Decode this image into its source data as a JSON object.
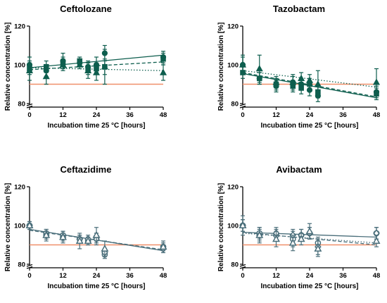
{
  "figure": {
    "background": "#ffffff"
  },
  "colors": {
    "teal_dark": "#0e5e4e",
    "slate": "#4a6e7a",
    "reference_line": "#f0906a",
    "axis": "#000000"
  },
  "chart_data": [
    {
      "type": "scatter",
      "title": "Ceftolozane",
      "xlabel": "Incubation time 25 °C [hours]",
      "ylabel": "Relative concentration [%]",
      "xlim": [
        0,
        48
      ],
      "xticks": [
        0,
        12,
        24,
        36,
        48
      ],
      "ylim": [
        80,
        120
      ],
      "yticks": [
        80,
        100,
        120
      ],
      "y_axis_break": true,
      "reference_line": 90,
      "color": "#0e5e4e",
      "series": [
        {
          "marker": "circle",
          "filled": true,
          "line": "solid",
          "x": [
            0,
            6,
            12,
            18,
            21,
            24,
            27,
            48
          ],
          "y": [
            100,
            97,
            102,
            101,
            99,
            100,
            106,
            104
          ],
          "err": [
            4,
            3,
            4,
            2,
            3,
            4,
            4,
            3
          ],
          "fit": [
            [
              0,
              98.5
            ],
            [
              48,
              105
            ]
          ]
        },
        {
          "marker": "square",
          "filled": true,
          "line": "dashed",
          "x": [
            0,
            6,
            12,
            18,
            21,
            24,
            27,
            48
          ],
          "y": [
            98,
            99,
            101,
            102,
            98,
            98,
            99,
            103
          ],
          "err": [
            3,
            3,
            3,
            2,
            3,
            3,
            4,
            3
          ],
          "fit": [
            [
              0,
              97.5
            ],
            [
              48,
              101.5
            ]
          ]
        },
        {
          "marker": "triangle",
          "filled": true,
          "line": "dotted",
          "x": [
            0,
            6,
            12,
            18,
            21,
            24,
            27,
            48
          ],
          "y": [
            97,
            94,
            100,
            100,
            97,
            96,
            99,
            96
          ],
          "err": [
            5,
            4,
            3,
            2,
            4,
            4,
            9,
            4
          ],
          "fit": [
            [
              0,
              98.5
            ],
            [
              48,
              97
            ]
          ]
        }
      ]
    },
    {
      "type": "scatter",
      "title": "Tazobactam",
      "xlabel": "Incubation time 25 °C [hours]",
      "ylabel": "Relative concentration [%]",
      "xlim": [
        0,
        48
      ],
      "xticks": [
        0,
        12,
        24,
        36,
        48
      ],
      "ylim": [
        80,
        120
      ],
      "yticks": [
        80,
        100,
        120
      ],
      "y_axis_break": true,
      "reference_line": 90,
      "color": "#0e5e4e",
      "series": [
        {
          "marker": "circle",
          "filled": true,
          "line": "solid",
          "x": [
            0,
            6,
            12,
            18,
            21,
            24,
            27,
            48
          ],
          "y": [
            100,
            93,
            89,
            91,
            90,
            87,
            84,
            86
          ],
          "err": [
            4,
            3,
            3,
            3,
            3,
            3,
            3,
            3
          ],
          "fit": [
            [
              0,
              95.5
            ],
            [
              48,
              83
            ]
          ]
        },
        {
          "marker": "square",
          "filled": true,
          "line": "dashed",
          "x": [
            0,
            6,
            12,
            18,
            21,
            24,
            27,
            48
          ],
          "y": [
            96,
            93,
            90,
            89,
            88,
            90,
            86,
            85
          ],
          "err": [
            3,
            3,
            3,
            3,
            3,
            3,
            3,
            3
          ],
          "fit": [
            [
              0,
              96
            ],
            [
              48,
              83.5
            ]
          ]
        },
        {
          "marker": "triangle",
          "filled": true,
          "line": "dotted",
          "x": [
            0,
            6,
            12,
            18,
            21,
            24,
            27,
            48
          ],
          "y": [
            100,
            98,
            91,
            91,
            93,
            92,
            90,
            91
          ],
          "err": [
            5,
            7,
            3,
            4,
            3,
            3,
            7,
            7
          ],
          "fit": [
            [
              0,
              97
            ],
            [
              48,
              88.5
            ]
          ]
        }
      ]
    },
    {
      "type": "scatter",
      "title": "Ceftazidime",
      "xlabel": "Incubation time 25 °C [hours]",
      "ylabel": "Relative concentration [%]",
      "xlim": [
        0,
        48
      ],
      "xticks": [
        0,
        12,
        24,
        36,
        48
      ],
      "ylim": [
        80,
        120
      ],
      "yticks": [
        80,
        100,
        120
      ],
      "y_axis_break": true,
      "reference_line": 90,
      "color": "#4a6e7a",
      "series": [
        {
          "marker": "circle",
          "filled": false,
          "line": "solid",
          "x": [
            0,
            6,
            12,
            18,
            21,
            24,
            27,
            48
          ],
          "y": [
            100,
            96,
            95,
            93,
            92,
            94,
            85,
            89
          ],
          "err": [
            2,
            2,
            2,
            2,
            2,
            2,
            2,
            2
          ],
          "fit": [
            [
              0,
              98
            ],
            [
              48,
              87
            ]
          ]
        },
        {
          "marker": "diamond",
          "filled": false,
          "line": "dashed",
          "x": [
            0,
            6,
            12,
            18,
            21,
            24,
            27,
            48
          ],
          "y": [
            100,
            95,
            94,
            93,
            93,
            93,
            86,
            88
          ],
          "err": [
            2,
            2,
            2,
            2,
            2,
            3,
            2,
            2
          ],
          "fit": [
            [
              0,
              97.5
            ],
            [
              48,
              87.5
            ]
          ]
        },
        {
          "marker": "triangle",
          "filled": false,
          "line": "dotted",
          "x": [
            0,
            6,
            12,
            18,
            21,
            24,
            27,
            48
          ],
          "y": [
            100,
            95,
            94,
            92,
            92,
            95,
            88,
            89
          ],
          "err": [
            2,
            3,
            3,
            4,
            2,
            4,
            4,
            3
          ],
          "fit": [
            [
              0,
              98
            ],
            [
              48,
              87
            ]
          ]
        }
      ]
    },
    {
      "type": "scatter",
      "title": "Avibactam",
      "xlabel": "Incubation time 25 °C [hours]",
      "ylabel": "Relative concentration [%]",
      "xlim": [
        0,
        48
      ],
      "xticks": [
        0,
        12,
        24,
        36,
        48
      ],
      "ylim": [
        80,
        120
      ],
      "yticks": [
        80,
        100,
        120
      ],
      "y_axis_break": true,
      "reference_line": 90,
      "color": "#4a6e7a",
      "series": [
        {
          "marker": "circle",
          "filled": false,
          "line": "solid",
          "x": [
            0,
            6,
            12,
            18,
            21,
            24,
            27,
            48
          ],
          "y": [
            100,
            96,
            95,
            93,
            95,
            96,
            91,
            96
          ],
          "err": [
            3,
            3,
            3,
            4,
            3,
            3,
            3,
            3
          ],
          "fit": [
            [
              0,
              96.5
            ],
            [
              48,
              94
            ]
          ]
        },
        {
          "marker": "diamond",
          "filled": false,
          "line": "dashed",
          "x": [
            0,
            6,
            12,
            18,
            21,
            24,
            27,
            48
          ],
          "y": [
            100,
            95,
            96,
            95,
            95,
            96,
            89,
            96
          ],
          "err": [
            3,
            3,
            3,
            3,
            3,
            3,
            4,
            3
          ],
          "fit": [
            [
              0,
              96.5
            ],
            [
              48,
              90
            ]
          ]
        },
        {
          "marker": "triangle",
          "filled": false,
          "line": "dotted",
          "x": [
            0,
            6,
            12,
            18,
            21,
            24,
            27,
            48
          ],
          "y": [
            100,
            95,
            93,
            91,
            93,
            97,
            88,
            92
          ],
          "err": [
            5,
            4,
            4,
            4,
            3,
            4,
            4,
            3
          ],
          "fit": [
            [
              0,
              96
            ],
            [
              48,
              91
            ]
          ]
        }
      ]
    }
  ]
}
